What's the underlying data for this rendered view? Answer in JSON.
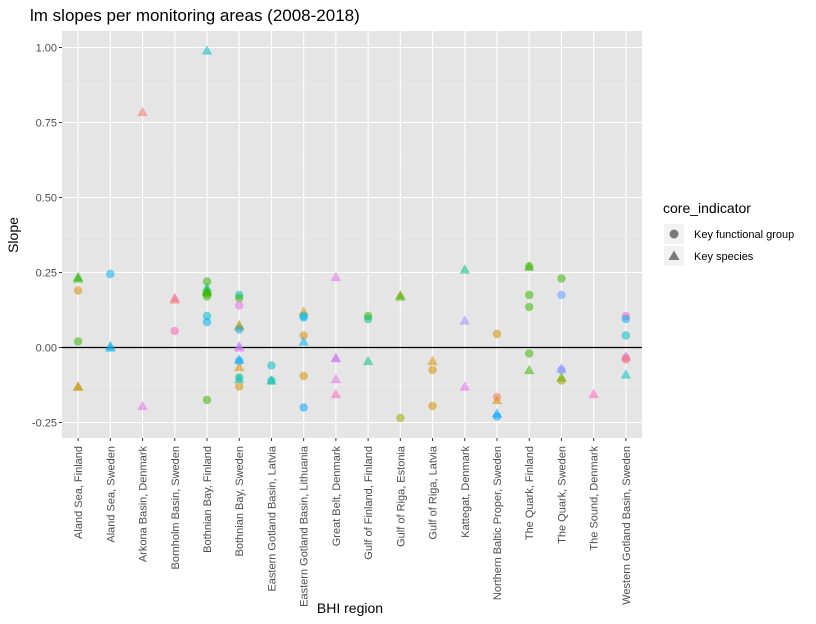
{
  "chart_data": {
    "type": "scatter",
    "title": "lm slopes per monitoring areas (2008-2018)",
    "xlabel": "BHI region",
    "ylabel": "Slope",
    "ylim": [
      -0.29,
      1.01
    ],
    "yticks": [
      -0.25,
      0.0,
      0.25,
      0.5,
      0.75,
      1.0
    ],
    "ytick_labels": [
      "-0.25",
      "0.00",
      "0.25",
      "0.50",
      "0.75",
      "1.00"
    ],
    "reference_line_y": 0,
    "grid": true,
    "background": "#e5e5e5",
    "categories": [
      "Aland Sea, Finland",
      "Aland Sea, Sweden",
      "Arkona Basin, Denmark",
      "Bornholm Basin, Sweden",
      "Bothnian Bay, Finland",
      "Bothnian Bay, Sweden",
      "Eastern Gotland Basin, Latvia",
      "Eastern Gotland Basin, Lithuania",
      "Great Belt, Denmark",
      "Gulf of Finland, Finland",
      "Gulf of Riga, Estonia",
      "Gulf of Riga, Latvia",
      "Kattegat, Denmark",
      "Northern Baltic Proper, Sweden",
      "The Quark, Finland",
      "The Quark, Sweden",
      "The Sound, Denmark",
      "Western Gotland Basin, Sweden"
    ],
    "legend": {
      "title": "core_indicator",
      "position": "right",
      "entries": [
        {
          "label": "Key functional group",
          "shape": "circle"
        },
        {
          "label": "Key species",
          "shape": "triangle"
        }
      ]
    },
    "points": [
      {
        "x": 0,
        "y": 0.19,
        "shape": "circle",
        "color": "#D89000"
      },
      {
        "x": 0,
        "y": 0.02,
        "shape": "circle",
        "color": "#39B600"
      },
      {
        "x": 0,
        "y": 0.235,
        "shape": "triangle",
        "color": "#00BF00"
      },
      {
        "x": 0,
        "y": 0.23,
        "shape": "triangle",
        "color": "#39B600"
      },
      {
        "x": 0,
        "y": -0.13,
        "shape": "triangle",
        "color": "#A3A500"
      },
      {
        "x": 0,
        "y": -0.13,
        "shape": "triangle",
        "color": "#D89000"
      },
      {
        "x": 1,
        "y": 0.245,
        "shape": "circle",
        "color": "#00B0F6"
      },
      {
        "x": 1,
        "y": 0.005,
        "shape": "triangle",
        "color": "#00BFC4"
      },
      {
        "x": 1,
        "y": 0.0,
        "shape": "triangle",
        "color": "#00A5FF"
      },
      {
        "x": 2,
        "y": 0.785,
        "shape": "triangle",
        "color": "#F8766D"
      },
      {
        "x": 2,
        "y": -0.195,
        "shape": "triangle",
        "color": "#E76BF3"
      },
      {
        "x": 3,
        "y": 0.165,
        "shape": "triangle",
        "color": "#FF62BC"
      },
      {
        "x": 3,
        "y": 0.16,
        "shape": "triangle",
        "color": "#F8766D"
      },
      {
        "x": 3,
        "y": 0.055,
        "shape": "circle",
        "color": "#FF62BC"
      },
      {
        "x": 4,
        "y": 0.99,
        "shape": "triangle",
        "color": "#00BFC4"
      },
      {
        "x": 4,
        "y": 0.22,
        "shape": "circle",
        "color": "#39B600"
      },
      {
        "x": 4,
        "y": 0.2,
        "shape": "triangle",
        "color": "#00BF7D"
      },
      {
        "x": 4,
        "y": 0.19,
        "shape": "triangle",
        "color": "#00BF00"
      },
      {
        "x": 4,
        "y": 0.185,
        "shape": "triangle",
        "color": "#39B600"
      },
      {
        "x": 4,
        "y": 0.18,
        "shape": "circle",
        "color": "#39B600"
      },
      {
        "x": 4,
        "y": 0.17,
        "shape": "circle",
        "color": "#39B600"
      },
      {
        "x": 4,
        "y": 0.105,
        "shape": "circle",
        "color": "#00BFC4"
      },
      {
        "x": 4,
        "y": 0.085,
        "shape": "circle",
        "color": "#00B0F6"
      },
      {
        "x": 4,
        "y": -0.175,
        "shape": "circle",
        "color": "#39B600"
      },
      {
        "x": 5,
        "y": 0.175,
        "shape": "circle",
        "color": "#00BFC4"
      },
      {
        "x": 5,
        "y": 0.165,
        "shape": "circle",
        "color": "#39B600"
      },
      {
        "x": 5,
        "y": 0.14,
        "shape": "circle",
        "color": "#E76BF3"
      },
      {
        "x": 5,
        "y": 0.075,
        "shape": "triangle",
        "color": "#A3A500"
      },
      {
        "x": 5,
        "y": 0.07,
        "shape": "triangle",
        "color": "#D89000"
      },
      {
        "x": 5,
        "y": 0.06,
        "shape": "circle",
        "color": "#00B0F6"
      },
      {
        "x": 5,
        "y": 0.005,
        "shape": "triangle",
        "color": "#9590FF"
      },
      {
        "x": 5,
        "y": 0.0,
        "shape": "triangle",
        "color": "#E76BF3"
      },
      {
        "x": 5,
        "y": -0.04,
        "shape": "triangle",
        "color": "#00A5FF"
      },
      {
        "x": 5,
        "y": -0.045,
        "shape": "circle",
        "color": "#00B0F6"
      },
      {
        "x": 5,
        "y": -0.065,
        "shape": "triangle",
        "color": "#D89000"
      },
      {
        "x": 5,
        "y": -0.1,
        "shape": "circle",
        "color": "#00BF7D"
      },
      {
        "x": 5,
        "y": -0.105,
        "shape": "triangle",
        "color": "#00BFC4"
      },
      {
        "x": 5,
        "y": -0.13,
        "shape": "circle",
        "color": "#D89000"
      },
      {
        "x": 6,
        "y": -0.06,
        "shape": "circle",
        "color": "#00BFC4"
      },
      {
        "x": 6,
        "y": -0.11,
        "shape": "triangle",
        "color": "#00BF7D"
      },
      {
        "x": 6,
        "y": -0.11,
        "shape": "circle",
        "color": "#00BFC4"
      },
      {
        "x": 7,
        "y": 0.12,
        "shape": "triangle",
        "color": "#D89000"
      },
      {
        "x": 7,
        "y": 0.105,
        "shape": "circle",
        "color": "#00BFC4"
      },
      {
        "x": 7,
        "y": 0.1,
        "shape": "circle",
        "color": "#00B0F6"
      },
      {
        "x": 7,
        "y": 0.04,
        "shape": "circle",
        "color": "#D89000"
      },
      {
        "x": 7,
        "y": 0.02,
        "shape": "triangle",
        "color": "#00B0F6"
      },
      {
        "x": 7,
        "y": -0.095,
        "shape": "circle",
        "color": "#D89000"
      },
      {
        "x": 7,
        "y": -0.2,
        "shape": "circle",
        "color": "#00A5FF"
      },
      {
        "x": 8,
        "y": 0.235,
        "shape": "triangle",
        "color": "#E76BF3"
      },
      {
        "x": 8,
        "y": -0.035,
        "shape": "triangle",
        "color": "#9590FF"
      },
      {
        "x": 8,
        "y": -0.035,
        "shape": "triangle",
        "color": "#E76BF3"
      },
      {
        "x": 8,
        "y": -0.105,
        "shape": "triangle",
        "color": "#E76BF3"
      },
      {
        "x": 8,
        "y": -0.155,
        "shape": "triangle",
        "color": "#FF62BC"
      },
      {
        "x": 9,
        "y": 0.105,
        "shape": "circle",
        "color": "#39B600"
      },
      {
        "x": 9,
        "y": 0.095,
        "shape": "circle",
        "color": "#00BF7D"
      },
      {
        "x": 9,
        "y": -0.045,
        "shape": "triangle",
        "color": "#00BF7D"
      },
      {
        "x": 10,
        "y": 0.175,
        "shape": "triangle",
        "color": "#A3A500"
      },
      {
        "x": 10,
        "y": 0.17,
        "shape": "triangle",
        "color": "#39B600"
      },
      {
        "x": 10,
        "y": -0.235,
        "shape": "circle",
        "color": "#A3A500"
      },
      {
        "x": 11,
        "y": -0.045,
        "shape": "triangle",
        "color": "#D89000"
      },
      {
        "x": 11,
        "y": -0.075,
        "shape": "circle",
        "color": "#D89000"
      },
      {
        "x": 11,
        "y": -0.195,
        "shape": "circle",
        "color": "#D89000"
      },
      {
        "x": 12,
        "y": 0.26,
        "shape": "triangle",
        "color": "#00BF7D"
      },
      {
        "x": 12,
        "y": 0.09,
        "shape": "triangle",
        "color": "#9590FF"
      },
      {
        "x": 12,
        "y": -0.13,
        "shape": "triangle",
        "color": "#E76BF3"
      },
      {
        "x": 13,
        "y": 0.045,
        "shape": "circle",
        "color": "#D89000"
      },
      {
        "x": 13,
        "y": -0.165,
        "shape": "circle",
        "color": "#F8766D"
      },
      {
        "x": 13,
        "y": -0.175,
        "shape": "triangle",
        "color": "#D89000"
      },
      {
        "x": 13,
        "y": -0.22,
        "shape": "triangle",
        "color": "#00A5FF"
      },
      {
        "x": 13,
        "y": -0.23,
        "shape": "circle",
        "color": "#00A5FF"
      },
      {
        "x": 14,
        "y": 0.27,
        "shape": "circle",
        "color": "#39B600"
      },
      {
        "x": 14,
        "y": 0.27,
        "shape": "triangle",
        "color": "#39B600"
      },
      {
        "x": 14,
        "y": 0.175,
        "shape": "circle",
        "color": "#39B600"
      },
      {
        "x": 14,
        "y": 0.135,
        "shape": "circle",
        "color": "#39B600"
      },
      {
        "x": 14,
        "y": -0.02,
        "shape": "circle",
        "color": "#39B600"
      },
      {
        "x": 14,
        "y": -0.075,
        "shape": "triangle",
        "color": "#39B600"
      },
      {
        "x": 15,
        "y": 0.23,
        "shape": "circle",
        "color": "#39B600"
      },
      {
        "x": 15,
        "y": 0.175,
        "shape": "circle",
        "color": "#619CFF"
      },
      {
        "x": 15,
        "y": -0.07,
        "shape": "triangle",
        "color": "#619CFF"
      },
      {
        "x": 15,
        "y": -0.075,
        "shape": "circle",
        "color": "#9590FF"
      },
      {
        "x": 15,
        "y": -0.1,
        "shape": "triangle",
        "color": "#39B600"
      },
      {
        "x": 15,
        "y": -0.11,
        "shape": "circle",
        "color": "#A3A500"
      },
      {
        "x": 16,
        "y": -0.155,
        "shape": "triangle",
        "color": "#FF62BC"
      },
      {
        "x": 17,
        "y": 0.105,
        "shape": "circle",
        "color": "#FF62BC"
      },
      {
        "x": 17,
        "y": 0.095,
        "shape": "circle",
        "color": "#00B0F6"
      },
      {
        "x": 17,
        "y": 0.04,
        "shape": "circle",
        "color": "#00BFC4"
      },
      {
        "x": 17,
        "y": -0.03,
        "shape": "triangle",
        "color": "#9590FF"
      },
      {
        "x": 17,
        "y": -0.035,
        "shape": "circle",
        "color": "#FF62BC"
      },
      {
        "x": 17,
        "y": -0.04,
        "shape": "circle",
        "color": "#F8766D"
      },
      {
        "x": 17,
        "y": -0.09,
        "shape": "triangle",
        "color": "#00BFC4"
      }
    ]
  }
}
